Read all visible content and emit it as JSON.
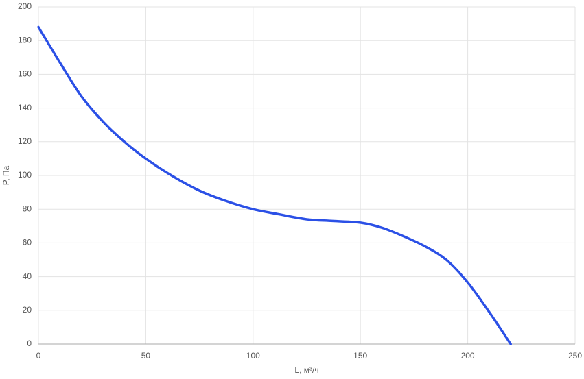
{
  "chart_data": {
    "type": "line",
    "x_label": "L, м³/ч",
    "y_label": "P, Па",
    "x": [
      0,
      10,
      20,
      30,
      40,
      50,
      62,
      75,
      87,
      100,
      112,
      125,
      137,
      150,
      160,
      170,
      180,
      190,
      200,
      210,
      220
    ],
    "series": [
      {
        "color": "#2b50e6",
        "values": [
          188,
          167,
          147,
          132,
          120,
          110,
          100,
          91,
          85,
          80,
          77,
          74,
          73,
          72,
          69,
          64,
          58,
          50,
          36.5,
          19,
          0
        ]
      }
    ],
    "xlim": [
      0,
      250
    ],
    "xticks": [
      0,
      50,
      100,
      150,
      200,
      250
    ],
    "ylim": [
      0,
      200
    ],
    "yticks": [
      0,
      20,
      40,
      60,
      80,
      100,
      120,
      140,
      160,
      180,
      200
    ],
    "grid": true
  }
}
